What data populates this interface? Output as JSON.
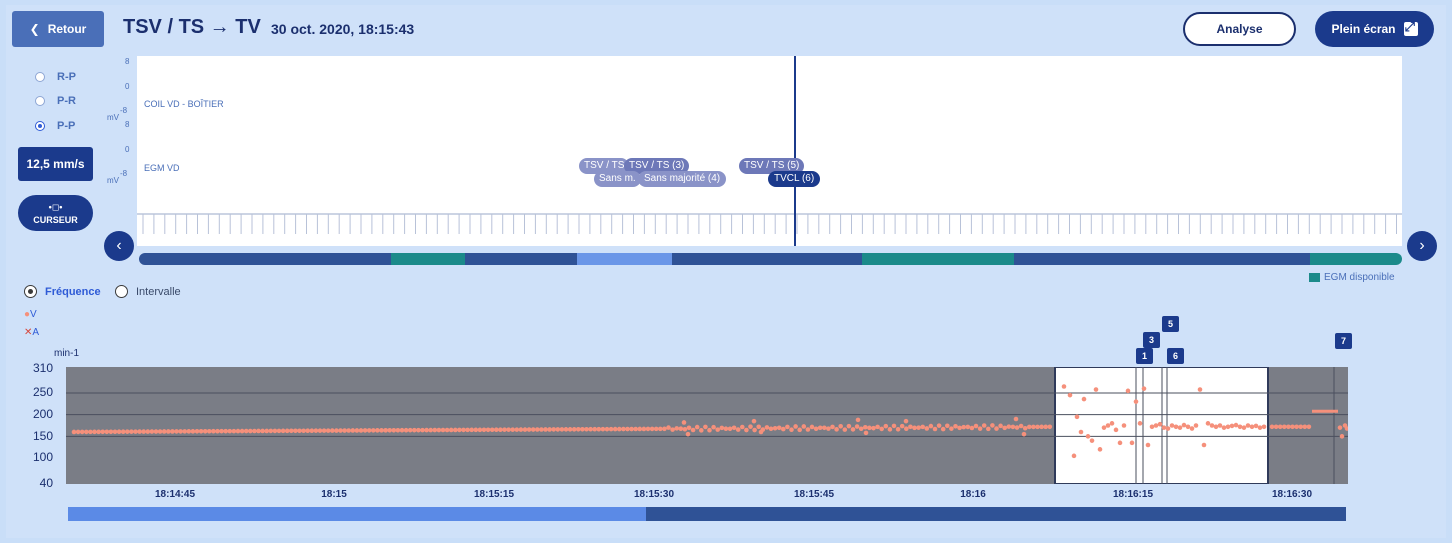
{
  "header": {
    "back_label": "Retour",
    "title": "TSV / TS → TV",
    "datetime": "30 oct. 2020, 18:15:43",
    "analyse_label": "Analyse",
    "fullscreen_label": "Plein écran"
  },
  "sidebar": {
    "radios": [
      {
        "label": "R-P",
        "selected": false
      },
      {
        "label": "P-R",
        "selected": false
      },
      {
        "label": "P-P",
        "selected": true
      }
    ],
    "speed_label": "12,5 mm/s",
    "cursor_label": "CURSEUR"
  },
  "egm": {
    "channels": [
      {
        "label": "COIL VD - BOÎTIER",
        "scale_top": "8",
        "scale_mid": "0",
        "scale_bottom": "-8",
        "unit": "mV"
      },
      {
        "label": "EGM VD",
        "scale_top": "8",
        "scale_mid": "0",
        "scale_bottom": "-8",
        "unit": "mV"
      }
    ],
    "annotations": [
      {
        "label": "TSV / TS"
      },
      {
        "label": "TSV / TS (3)"
      },
      {
        "label": "Sans m."
      },
      {
        "label": "Sans majorité (4)"
      },
      {
        "label": "TSV / TS (5)"
      },
      {
        "label": "TVCL (6)"
      }
    ],
    "legend": "EGM disponible",
    "colors": {
      "dark": "#2f5296",
      "teal": "#1b8a8a",
      "light": "#6a96e8"
    }
  },
  "trend": {
    "modes": [
      {
        "label": "Fréquence",
        "selected": true
      },
      {
        "label": "Intervalle",
        "selected": false
      }
    ],
    "legend_v": "V",
    "legend_a": "A",
    "unit": "min-1",
    "yticks": [
      "310",
      "250",
      "200",
      "150",
      "100",
      "40"
    ],
    "xticks": [
      "18:14:45",
      "18:15",
      "18:15:15",
      "18:15:30",
      "18:15:45",
      "18:16",
      "18:16:15",
      "18:16:30"
    ],
    "markers": [
      "1",
      "3",
      "5",
      "6",
      "7"
    ],
    "colors": {
      "plot_bg": "#7a7d86",
      "point": "#f5907b",
      "highlight_bg": "#ffffff"
    }
  },
  "chart_data": {
    "type": "scatter",
    "title": "",
    "xlabel": "",
    "ylabel": "min-1",
    "ylim": [
      40,
      310
    ],
    "x_tick_labels": [
      "18:14:45",
      "18:15",
      "18:15:15",
      "18:15:30",
      "18:15:45",
      "18:16",
      "18:16:15",
      "18:16:30"
    ],
    "series": [
      {
        "name": "V",
        "values_description_free": true,
        "values": [
          [
            0.0,
            160
          ],
          [
            0.05,
            161
          ],
          [
            0.1,
            162
          ],
          [
            0.15,
            161
          ],
          [
            0.2,
            162
          ],
          [
            0.25,
            163
          ],
          [
            0.3,
            162
          ],
          [
            0.35,
            163
          ],
          [
            0.4,
            164
          ],
          [
            0.45,
            165
          ],
          [
            0.5,
            166
          ],
          [
            0.55,
            167
          ],
          [
            0.6,
            168
          ],
          [
            0.65,
            167
          ],
          [
            0.7,
            170
          ],
          [
            0.75,
            170
          ],
          [
            0.8,
            172
          ],
          [
            0.85,
            173
          ],
          [
            0.9,
            172
          ],
          [
            0.95,
            173
          ],
          [
            1.0,
            172
          ]
        ]
      }
    ]
  }
}
